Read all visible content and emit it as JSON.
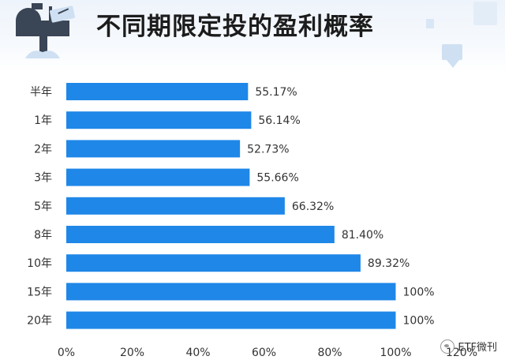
{
  "chart_data": {
    "type": "bar",
    "orientation": "horizontal",
    "title": "不同期限定投的盈利概率",
    "categories": [
      "半年",
      "1年",
      "2年",
      "3年",
      "5年",
      "8年",
      "10年",
      "15年",
      "20年"
    ],
    "values": [
      55.17,
      56.14,
      52.73,
      55.66,
      66.32,
      81.4,
      89.32,
      100,
      100
    ],
    "value_labels": [
      "55.17%",
      "56.14%",
      "52.73%",
      "55.66%",
      "66.32%",
      "81.40%",
      "89.32%",
      "100%",
      "100%"
    ],
    "xlim": [
      0,
      120
    ],
    "xticks": [
      "0%",
      "20%",
      "40%",
      "60%",
      "80%",
      "100%",
      "120%"
    ],
    "grid": false,
    "bar_color": "#1f87e8"
  },
  "watermark": "ETF微刊",
  "colors": {
    "header_bg": "#eef4fb",
    "icon_dark": "#3a4556",
    "icon_light": "#cfe0f3"
  }
}
